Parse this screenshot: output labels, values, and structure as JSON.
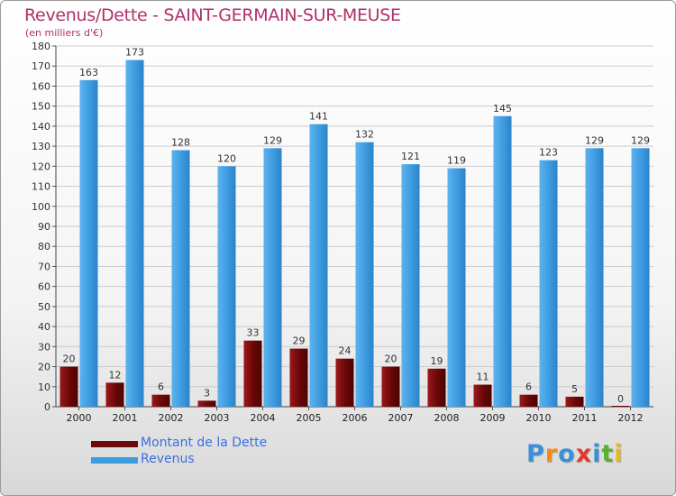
{
  "title": "Revenus/Dette - SAINT-GERMAIN-SUR-MEUSE",
  "subtitle": "(en milliers d'€)",
  "colors": {
    "title": "#b0306a",
    "debt": "#7a0a0a",
    "revenue": "#3d9be0",
    "legend_text": "#3b6fe0"
  },
  "legend": [
    {
      "label": "Montant de la Dette",
      "color": "#6a0a0a"
    },
    {
      "label": "Revenus",
      "color": "#3d9be0"
    }
  ],
  "logo": {
    "text": "Proxiti",
    "letters": [
      {
        "ch": "P",
        "color": "#3a8fd8"
      },
      {
        "ch": "r",
        "color": "#f08a1c"
      },
      {
        "ch": "o",
        "color": "#3a8fd8"
      },
      {
        "ch": "x",
        "color": "#e23a2a"
      },
      {
        "ch": "i",
        "color": "#3a8fd8"
      },
      {
        "ch": "t",
        "color": "#5ab032"
      },
      {
        "ch": "i",
        "color": "#e8b820"
      }
    ]
  },
  "chart_data": {
    "type": "bar",
    "categories": [
      "2000",
      "2001",
      "2002",
      "2003",
      "2004",
      "2005",
      "2006",
      "2007",
      "2008",
      "2009",
      "2010",
      "2011",
      "2012"
    ],
    "series": [
      {
        "name": "Montant de la Dette",
        "values": [
          20,
          12,
          6,
          3,
          33,
          29,
          24,
          20,
          19,
          11,
          6,
          5,
          0
        ]
      },
      {
        "name": "Revenus",
        "values": [
          163,
          173,
          128,
          120,
          129,
          141,
          132,
          121,
          119,
          145,
          123,
          129,
          129
        ]
      }
    ],
    "ylim": [
      0,
      180
    ],
    "yticks": [
      0,
      10,
      20,
      30,
      40,
      50,
      60,
      70,
      80,
      90,
      100,
      110,
      120,
      130,
      140,
      150,
      160,
      170,
      180
    ],
    "grid": true,
    "legend_position": "bottom-left"
  }
}
